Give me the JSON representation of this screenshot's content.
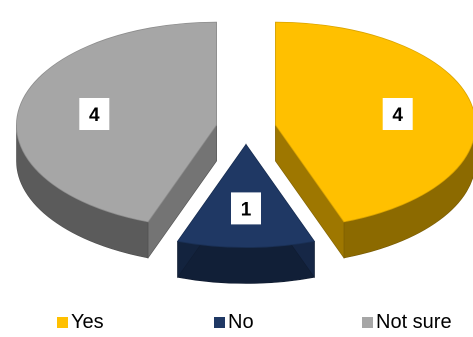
{
  "chart_data": {
    "type": "pie",
    "title": "",
    "style": "3d-exploded",
    "legend_position": "bottom",
    "data_labels": true,
    "categories": [
      "Yes",
      "No",
      "Not sure"
    ],
    "values": [
      4,
      1,
      4
    ],
    "colors": [
      "#FFC000",
      "#1F3864",
      "#A6A6A6"
    ]
  }
}
